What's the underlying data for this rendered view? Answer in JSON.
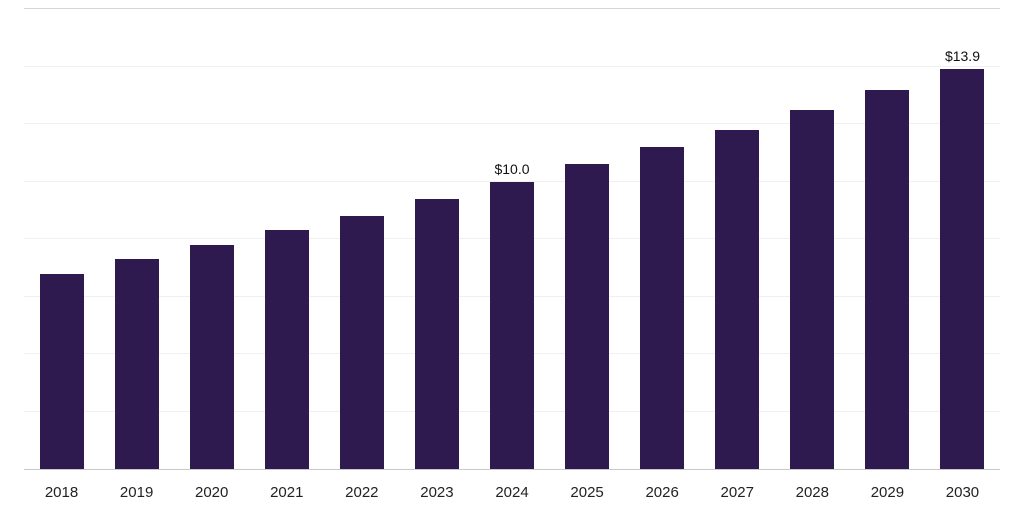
{
  "chart_data": {
    "type": "bar",
    "title": "",
    "xlabel": "",
    "ylabel": "",
    "categories": [
      "2018",
      "2019",
      "2020",
      "2021",
      "2022",
      "2023",
      "2024",
      "2025",
      "2026",
      "2027",
      "2028",
      "2029",
      "2030"
    ],
    "values": [
      6.8,
      7.3,
      7.8,
      8.3,
      8.8,
      9.4,
      10.0,
      10.6,
      11.2,
      11.8,
      12.5,
      13.2,
      13.9
    ],
    "value_labels": {
      "2024": "$10.0",
      "2030": "$13.9"
    },
    "ylim": [
      0,
      16
    ],
    "grid_step": 2,
    "grid": "horizontal",
    "legend": "none",
    "bar_color": "#2e1a4f",
    "background_color": "#ffffff",
    "gridline_color": "#f0f0f0",
    "axis_line_color": "#c9c9c9"
  }
}
